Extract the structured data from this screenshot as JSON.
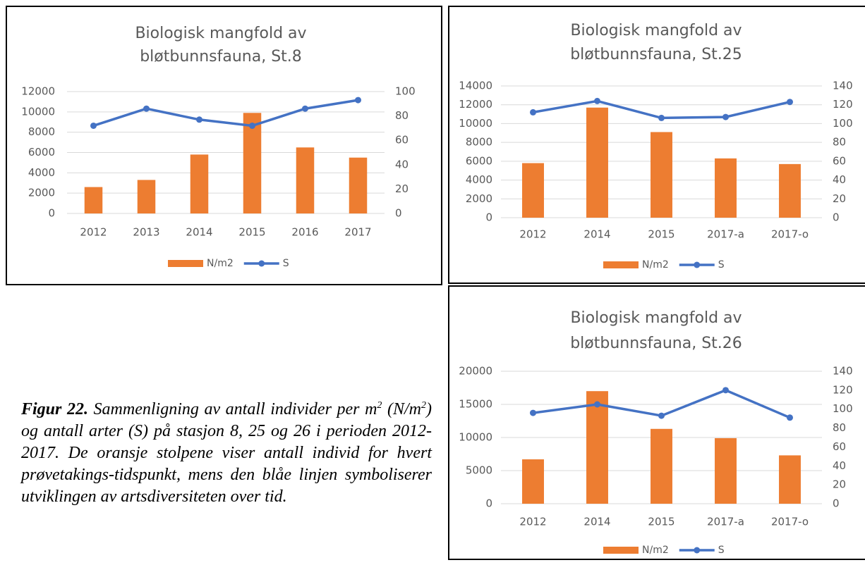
{
  "chart_data": [
    {
      "type": "bar-line",
      "title": [
        "Biologisk mangfold av",
        "bløtbunnsfauna, St.8"
      ],
      "categories": [
        "2012",
        "2013",
        "2014",
        "2015",
        "2016",
        "2017"
      ],
      "series": [
        {
          "name": "N/m2",
          "type": "bar",
          "color": "#ed7d31",
          "values": [
            2600,
            3300,
            5800,
            9900,
            6500,
            5500
          ]
        },
        {
          "name": "S",
          "type": "line",
          "axis": "y2",
          "color": "#4472c4",
          "values": [
            72,
            86,
            77,
            72,
            86,
            93
          ]
        }
      ],
      "ylim": [
        0,
        12000
      ],
      "yticks": [
        0,
        2000,
        4000,
        6000,
        8000,
        10000,
        12000
      ],
      "y2lim": [
        0,
        100
      ],
      "y2ticks": [
        0,
        20,
        40,
        60,
        80,
        100
      ],
      "grid": true,
      "legend": "bottom"
    },
    {
      "type": "bar-line",
      "title": [
        "Biologisk mangfold av",
        "bløtbunnsfauna, St.25"
      ],
      "categories": [
        "2012",
        "2014",
        "2015",
        "2017-a",
        "2017-o"
      ],
      "series": [
        {
          "name": "N/m2",
          "type": "bar",
          "color": "#ed7d31",
          "values": [
            5800,
            11700,
            9100,
            6300,
            5700
          ]
        },
        {
          "name": "S",
          "type": "line",
          "axis": "y2",
          "color": "#4472c4",
          "values": [
            112,
            124,
            106,
            107,
            123
          ]
        }
      ],
      "ylim": [
        0,
        14000
      ],
      "yticks": [
        0,
        2000,
        4000,
        6000,
        8000,
        10000,
        12000,
        14000
      ],
      "y2lim": [
        0,
        140
      ],
      "y2ticks": [
        0,
        20,
        40,
        60,
        80,
        100,
        120,
        140
      ],
      "grid": true,
      "legend": "bottom"
    },
    {
      "type": "bar-line",
      "title": [
        "Biologisk mangfold av",
        "bløtbunnsfauna, St.26"
      ],
      "categories": [
        "2012",
        "2014",
        "2015",
        "2017-a",
        "2017-o"
      ],
      "series": [
        {
          "name": "N/m2",
          "type": "bar",
          "color": "#ed7d31",
          "values": [
            6700,
            17000,
            11300,
            9900,
            7300
          ]
        },
        {
          "name": "S",
          "type": "line",
          "axis": "y2",
          "color": "#4472c4",
          "values": [
            96,
            105,
            93,
            120,
            91
          ]
        }
      ],
      "ylim": [
        0,
        20000
      ],
      "yticks": [
        0,
        5000,
        10000,
        15000,
        20000
      ],
      "y2lim": [
        0,
        140
      ],
      "y2ticks": [
        0,
        20,
        40,
        60,
        80,
        100,
        120,
        140
      ],
      "grid": true,
      "legend": "bottom"
    }
  ],
  "caption": {
    "label": "Figur 22.",
    "parts": [
      " Sammenligning av antall individer per m",
      "2",
      " (N/m",
      "2",
      ") og antall arter (S) på stasjon 8, 25 og 26 i perioden 2012-2017. De oransje stolpene viser antall individ for hvert prøvetakings-tidspunkt, mens den blåe linjen symboliserer utviklingen av artsdiversiteten over tid."
    ]
  }
}
